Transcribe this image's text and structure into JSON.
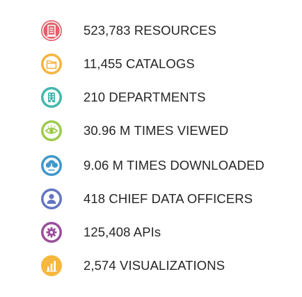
{
  "stats": [
    {
      "label": "523,783 RESOURCES",
      "icon": "document-icon",
      "color": "#e2606b"
    },
    {
      "label": "11,455 CATALOGS",
      "icon": "folder-icon",
      "color": "#f4b43c"
    },
    {
      "label": "210 DEPARTMENTS",
      "icon": "building-icon",
      "color": "#42b8ad"
    },
    {
      "label": "30.96 M TIMES VIEWED",
      "icon": "eye-icon",
      "color": "#9ccb4c"
    },
    {
      "label": "9.06 M TIMES DOWNLOADED",
      "icon": "download-icon",
      "color": "#3f97cc"
    },
    {
      "label": "418 CHIEF DATA OFFICERS",
      "icon": "person-icon",
      "color": "#6375c0"
    },
    {
      "label": "125,408 APIs",
      "icon": "gear-icon",
      "color": "#9a4e9c"
    },
    {
      "label": "2,574 VISUALIZATIONS",
      "icon": "bar-chart-icon",
      "color": "#f6b73c"
    }
  ]
}
